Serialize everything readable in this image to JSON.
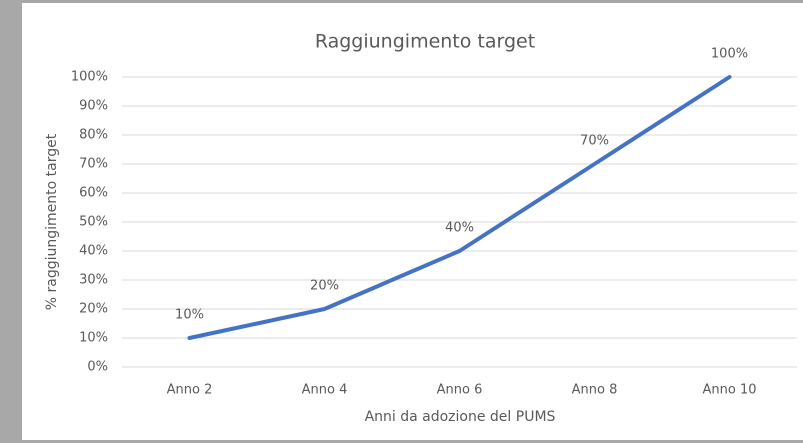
{
  "chart_data": {
    "type": "line",
    "title": "Raggiungimento target",
    "x_label": "Anni da adozione del PUMS",
    "y_label": "% raggiungimento target",
    "categories": [
      "Anno 2",
      "Anno 4",
      "Anno 6",
      "Anno 8",
      "Anno 10"
    ],
    "values": [
      10,
      20,
      40,
      70,
      100
    ],
    "value_labels": [
      "10%",
      "20%",
      "40%",
      "70%",
      "100%"
    ],
    "color": "#4472c4",
    "ylim": [
      0,
      100
    ],
    "yticks": [
      {
        "value": 0,
        "label": "0%"
      },
      {
        "value": 10,
        "label": "10%"
      },
      {
        "value": 20,
        "label": "20%"
      },
      {
        "value": 30,
        "label": "30%"
      },
      {
        "value": 40,
        "label": "40%"
      },
      {
        "value": 50,
        "label": "50%"
      },
      {
        "value": 60,
        "label": "60%"
      },
      {
        "value": 70,
        "label": "70%"
      },
      {
        "value": 80,
        "label": "80%"
      },
      {
        "value": 90,
        "label": "90%"
      },
      {
        "value": 100,
        "label": "100%"
      }
    ],
    "grid": true
  }
}
